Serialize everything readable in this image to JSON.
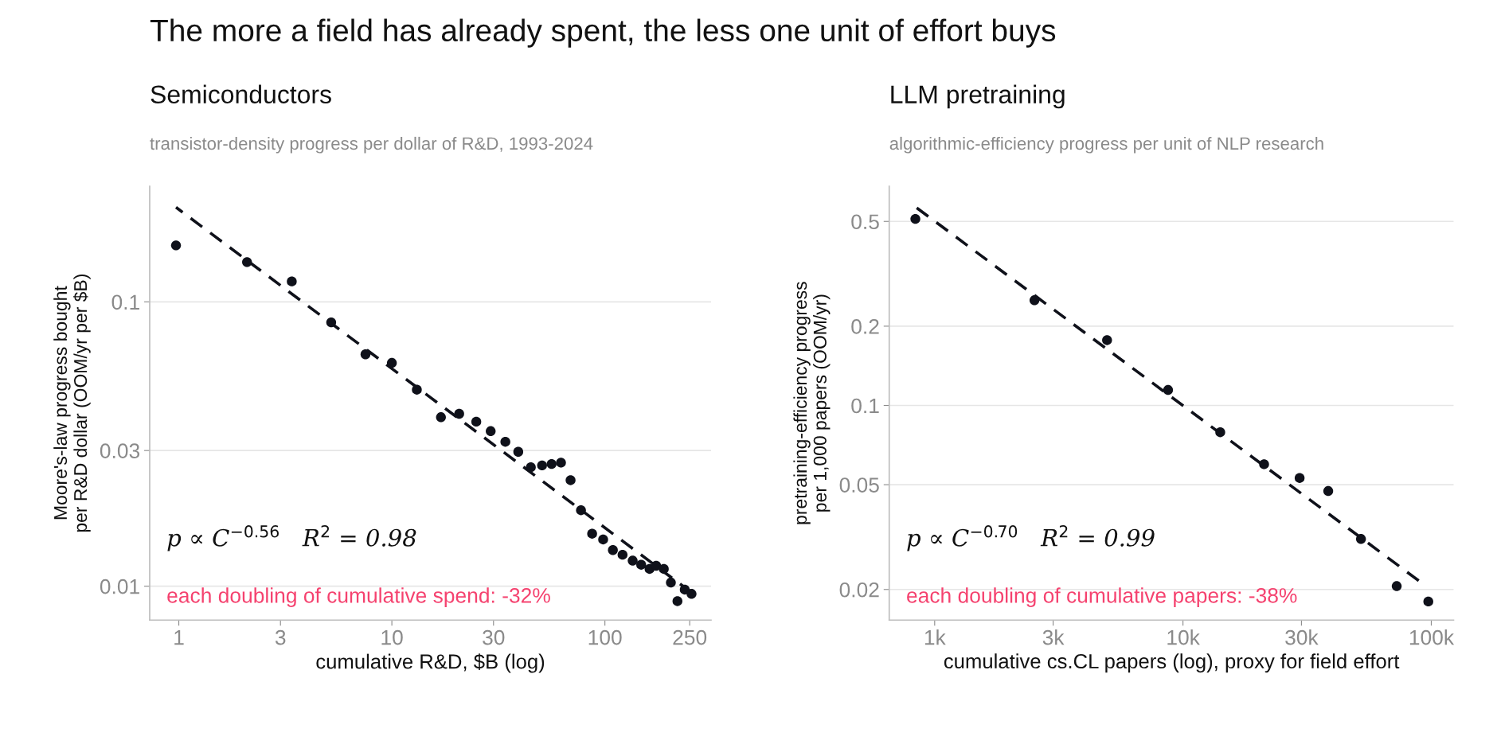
{
  "chart_data": [
    {
      "type": "scatter",
      "title": "Semiconductors",
      "subtitle": "transistor-density progress per dollar of R&D, 1993-2024",
      "xlabel": "cumulative R&D, $B (log)",
      "ylabel": "Moore's-law progress bought\nper R&D dollar (OOM/yr per $B)",
      "log": "xy",
      "grid": "y",
      "xlim": [
        0.73,
        315
      ],
      "ylim": [
        0.0076,
        0.255
      ],
      "xticks": [
        1,
        3,
        10,
        30,
        100,
        250
      ],
      "yticks": [
        0.01,
        0.03,
        0.1
      ],
      "x": [
        0.97,
        2.09,
        3.39,
        5.19,
        7.52,
        10.0,
        13.1,
        17.0,
        20.7,
        24.9,
        29.1,
        34.1,
        39.2,
        44.9,
        50.7,
        56.2,
        62.2,
        69.0,
        77.2,
        87.1,
        98.1,
        109,
        121,
        135,
        148,
        162,
        174,
        189,
        204,
        219,
        237,
        255
      ],
      "series": [
        {
          "marker": "circle",
          "color": "#0f111a",
          "values": [
            0.158,
            0.138,
            0.118,
            0.0847,
            0.0654,
            0.061,
            0.0491,
            0.0393,
            0.0404,
            0.0379,
            0.0351,
            0.0322,
            0.0297,
            0.0262,
            0.0266,
            0.0269,
            0.0272,
            0.0236,
            0.0185,
            0.0153,
            0.0146,
            0.0134,
            0.0129,
            0.0123,
            0.0119,
            0.0115,
            0.0118,
            0.0115,
            0.0103,
            0.00886,
            0.00973,
            0.0094
          ]
        },
        {
          "type": "line",
          "line_style": "dashed",
          "color": "#0f111a",
          "x": [
            0.97,
            255
          ],
          "values": [
            0.215,
            0.0095
          ]
        }
      ],
      "annotations": [
        "The more a field has already spent, the less one unit of effort buys",
        "p ∝ C$^{−0.56}$   R$^{2}$ = 0.98",
        "each doubling of cumulative spend: -32%"
      ]
    },
    {
      "type": "scatter",
      "title": "LLM pretraining",
      "subtitle": "algorithmic-efficiency progress per unit of NLP research",
      "xlabel": "cumulative cs.CL papers (log), proxy for field effort",
      "ylabel": "pretraining-efficiency progress\nper 1,000 papers (OOM/yr)",
      "log": "xy",
      "grid": "y",
      "xlim": [
        656,
        123000
      ],
      "ylim": [
        0.0153,
        0.68
      ],
      "xticks": [
        {
          "value": 1000,
          "label": "1k"
        },
        {
          "value": 3000,
          "label": "3k"
        },
        {
          "value": 10000,
          "label": "10k"
        },
        {
          "value": 30000,
          "label": "30k"
        },
        {
          "value": 100000,
          "label": "100k"
        }
      ],
      "yticks": [
        0.02,
        0.05,
        0.1,
        0.2,
        0.5
      ],
      "x": [
        836,
        2523,
        4946,
        8710,
        14130,
        21220,
        29500,
        38460,
        52100,
        72580,
        97300
      ],
      "series": [
        {
          "marker": "circle",
          "color": "#0f111a",
          "values": [
            0.511,
            0.251,
            0.177,
            0.1145,
            0.0791,
            0.0598,
            0.053,
            0.0473,
            0.0311,
            0.0206,
            0.018
          ]
        },
        {
          "type": "line",
          "line_style": "dashed",
          "color": "#0f111a",
          "x": [
            836,
            89000
          ],
          "values": [
            0.568,
            0.0216
          ]
        }
      ],
      "annotations": [
        "p ∝ C$^{−0.70}$   R$^{2}$ = 0.99",
        "each doubling of cumulative papers: -38%"
      ]
    }
  ]
}
